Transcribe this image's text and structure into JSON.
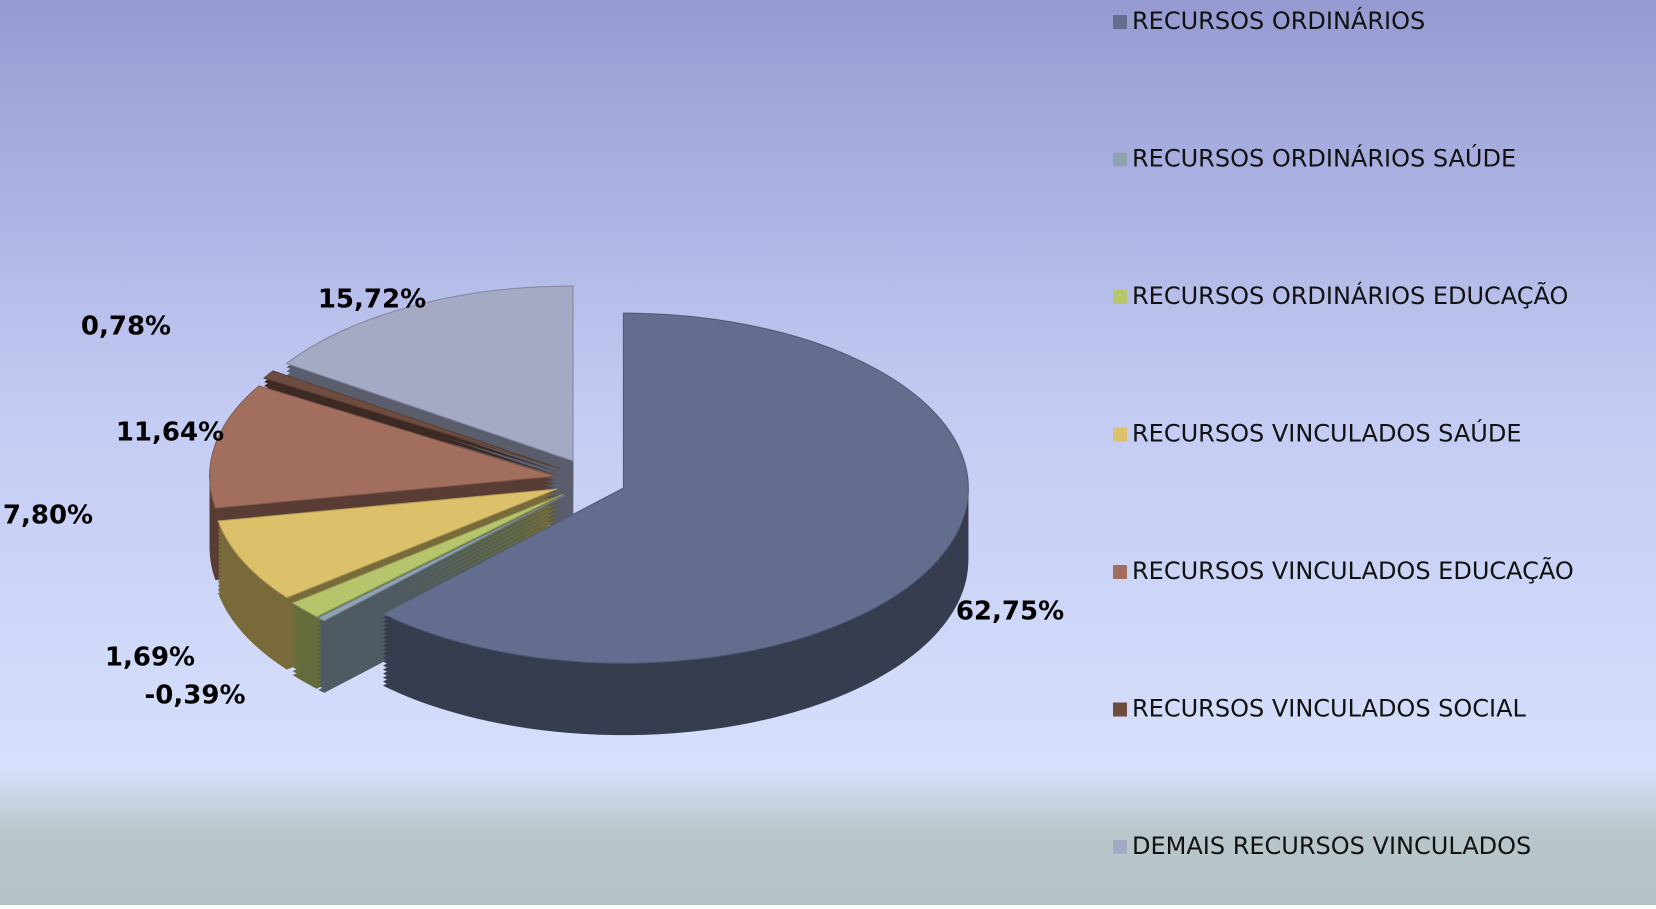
{
  "chart_data": {
    "type": "pie",
    "categories": [
      "RECURSOS ORDINÁRIOS",
      "RECURSOS ORDINÁRIOS SAÚDE",
      "RECURSOS ORDINÁRIOS EDUCAÇÃO",
      "RECURSOS VINCULADOS SAÚDE",
      "RECURSOS VINCULADOS EDUCAÇÃO",
      "RECURSOS VINCULADOS SOCIAL",
      "DEMAIS RECURSOS VINCULADOS"
    ],
    "values": [
      62.75,
      -0.39,
      1.69,
      7.8,
      11.64,
      0.78,
      15.72
    ],
    "value_labels": [
      "62,75%",
      "-0,39%",
      "1,69%",
      "7,80%",
      "11,64%",
      "0,78%",
      "15,72%"
    ],
    "colors": [
      "#636e8e",
      "#8fa3b2",
      "#b6c56c",
      "#dcc06a",
      "#a26f5f",
      "#6e4d40",
      "#a4a9c4"
    ],
    "legend": "right"
  }
}
